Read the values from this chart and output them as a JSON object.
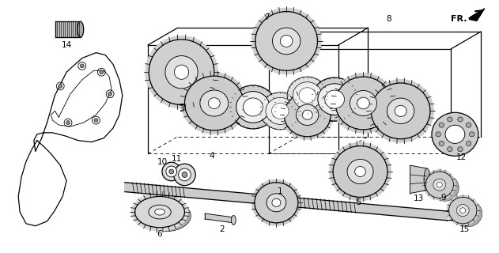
{
  "bg_color": "#ffffff",
  "line_color": "#000000",
  "fig_width": 6.31,
  "fig_height": 3.2,
  "dpi": 100,
  "fr_label": "FR.",
  "gear_gray": "#888888",
  "gear_light": "#bbbbbb",
  "gear_dark": "#555555",
  "fill_white": "#ffffff",
  "case_color": "#999999"
}
